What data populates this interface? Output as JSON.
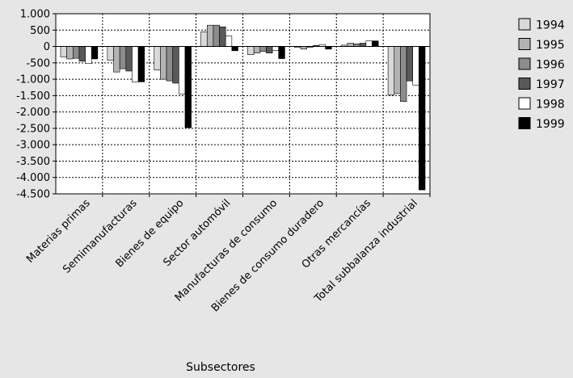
{
  "chart_data": {
    "type": "bar",
    "xlabel": "Subsectores",
    "ylabel": "",
    "ylim": [
      -4500,
      1000
    ],
    "yticks": [
      1000,
      500,
      0,
      -500,
      -1000,
      -1500,
      -2000,
      -2500,
      -3000,
      -3500,
      -4000,
      -4500
    ],
    "ytick_labels": [
      "1.000",
      "500",
      "0",
      "-500",
      "-1.000",
      "-1.500",
      "-2.000",
      "-2.500",
      "-3.000",
      "-3.500",
      "-4.000",
      "-4.500"
    ],
    "grid": "dotted",
    "legend_position": "right",
    "categories": [
      "Materias primas",
      "Semimanufacturas",
      "Bienes de equipo",
      "Sector automóvil",
      "Manufacturas de consumo",
      "Bienes de consumo duradero",
      "Otras mercancías",
      "Total subbalanza industrial"
    ],
    "series": [
      {
        "name": "1994",
        "color": "#d9d9d9",
        "values": [
          -320,
          -420,
          -720,
          450,
          -250,
          -30,
          40,
          -1480
        ]
      },
      {
        "name": "1995",
        "color": "#b3b3b3",
        "values": [
          -380,
          -780,
          -1000,
          650,
          -200,
          -80,
          100,
          -1440
        ]
      },
      {
        "name": "1996",
        "color": "#8c8c8c",
        "values": [
          -360,
          -680,
          -1050,
          650,
          -150,
          -20,
          80,
          -1680
        ]
      },
      {
        "name": "1997",
        "color": "#595959",
        "values": [
          -450,
          -750,
          -1120,
          600,
          -200,
          30,
          100,
          -1050
        ]
      },
      {
        "name": "1998",
        "color": "#ffffff",
        "values": [
          -520,
          -1080,
          -1450,
          320,
          -120,
          60,
          170,
          -1180
        ]
      },
      {
        "name": "1999",
        "color": "#000000",
        "values": [
          -380,
          -1080,
          -2480,
          -130,
          -370,
          -80,
          170,
          -4380
        ]
      }
    ]
  }
}
